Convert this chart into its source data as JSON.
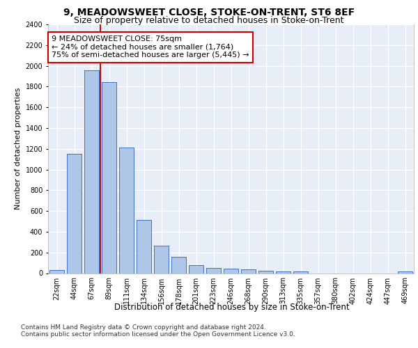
{
  "title1": "9, MEADOWSWEET CLOSE, STOKE-ON-TRENT, ST6 8EF",
  "title2": "Size of property relative to detached houses in Stoke-on-Trent",
  "xlabel": "Distribution of detached houses by size in Stoke-on-Trent",
  "ylabel": "Number of detached properties",
  "categories": [
    "22sqm",
    "44sqm",
    "67sqm",
    "89sqm",
    "111sqm",
    "134sqm",
    "156sqm",
    "178sqm",
    "201sqm",
    "223sqm",
    "246sqm",
    "268sqm",
    "290sqm",
    "313sqm",
    "335sqm",
    "357sqm",
    "380sqm",
    "402sqm",
    "424sqm",
    "447sqm",
    "469sqm"
  ],
  "values": [
    30,
    1150,
    1960,
    1840,
    1210,
    515,
    265,
    155,
    80,
    50,
    45,
    38,
    22,
    18,
    14,
    0,
    0,
    0,
    0,
    0,
    18
  ],
  "bar_color": "#aec6e8",
  "bar_edge_color": "#4472c4",
  "red_line_x": 2.5,
  "annotation_text": "9 MEADOWSWEET CLOSE: 75sqm\n← 24% of detached houses are smaller (1,764)\n75% of semi-detached houses are larger (5,445) →",
  "annotation_box_color": "#ffffff",
  "annotation_box_edge": "#cc0000",
  "footer1": "Contains HM Land Registry data © Crown copyright and database right 2024.",
  "footer2": "Contains public sector information licensed under the Open Government Licence v3.0.",
  "ylim": [
    0,
    2400
  ],
  "yticks": [
    0,
    200,
    400,
    600,
    800,
    1000,
    1200,
    1400,
    1600,
    1800,
    2000,
    2200,
    2400
  ],
  "plot_bg": "#e8eef8",
  "grid_color": "#ffffff",
  "title1_fontsize": 10,
  "title2_fontsize": 9,
  "xlabel_fontsize": 8.5,
  "ylabel_fontsize": 8,
  "tick_fontsize": 7,
  "annotation_fontsize": 8,
  "footer_fontsize": 6.5
}
